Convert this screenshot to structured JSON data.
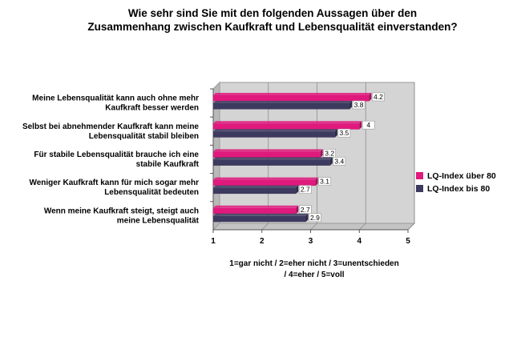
{
  "chart_data": {
    "type": "bar",
    "orientation": "horizontal",
    "title_lines": [
      "Wie sehr sind Sie mit den folgenden Aussagen über den",
      "Zusammenhang zwischen Kaufkraft und Lebensqualität einverstanden?"
    ],
    "categories": [
      [
        "Meine Lebensqualität kann auch ohne mehr",
        "Kaufkraft besser werden"
      ],
      [
        "Selbst bei abnehmender Kaufkraft kann meine",
        "Lebensqualität stabil bleiben"
      ],
      [
        "Für stabile Lebensqualität brauche ich eine",
        "stabile Kaufkraft"
      ],
      [
        "Weniger Kaufkraft kann für mich sogar mehr",
        "Lebensqualität bedeuten"
      ],
      [
        "Wenn meine Kaufkraft steigt, steigt auch",
        "meine Lebensqualität"
      ]
    ],
    "series": [
      {
        "name": "LQ-Index über 80",
        "color": "#e0197d",
        "values": [
          4.2,
          4,
          3.2,
          3.1,
          2.7
        ]
      },
      {
        "name": "LQ-Index bis 80",
        "color": "#3c3a5e",
        "values": [
          3.8,
          3.5,
          3.4,
          2.7,
          2.9
        ]
      }
    ],
    "xlim": [
      1,
      5
    ],
    "ticks": [
      "1",
      "2",
      "3",
      "4",
      "5"
    ],
    "xlabel_lines": [
      "1=gar nicht / 2=eher nicht / 3=unentschieden",
      "/ 4=eher / 5=voll"
    ],
    "grid": true,
    "legend_position": "right",
    "plot_background": "#d4d4d4"
  }
}
